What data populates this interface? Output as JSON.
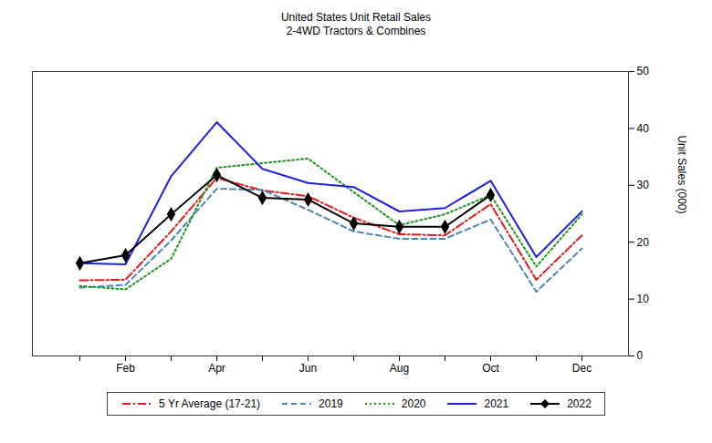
{
  "chart_data": {
    "type": "line",
    "title": "United States Unit Retail Sales",
    "subtitle": "2-4WD Tractors & Combines",
    "y_label": "Unit Sales (000)",
    "categories": [
      null,
      "Feb",
      null,
      "Apr",
      null,
      "Jun",
      null,
      "Aug",
      null,
      "Oct",
      null,
      "Dec"
    ],
    "series": [
      {
        "name": "5 Yr Average (17-21)",
        "color": "#e31a1c",
        "line_style": "dashdot",
        "values": [
          13.3,
          13.4,
          21.9,
          31.3,
          29.1,
          28.1,
          24.3,
          21.4,
          21.2,
          26.7,
          13.4,
          21.2
        ]
      },
      {
        "name": "2019",
        "color": "#4a86b8",
        "line_style": "dashed",
        "values": [
          12.0,
          12.5,
          20.3,
          29.4,
          29.2,
          25.7,
          21.9,
          20.6,
          20.6,
          24.0,
          11.3,
          18.9
        ]
      },
      {
        "name": "2020",
        "color": "#1a961a",
        "line_style": "dotted",
        "values": [
          12.3,
          11.7,
          17.1,
          33.1,
          33.9,
          34.7,
          28.8,
          23.0,
          24.9,
          28.3,
          15.7,
          24.9
        ]
      },
      {
        "name": "2021",
        "color": "#1f1fe0",
        "line_style": "solid",
        "values": [
          16.3,
          16.1,
          31.6,
          41.1,
          32.9,
          30.4,
          29.7,
          25.4,
          26.0,
          30.8,
          17.4,
          25.4
        ]
      },
      {
        "name": "2022",
        "color": "#000000",
        "line_style": "solid",
        "marker": "diamond",
        "values": [
          16.3,
          17.7,
          24.9,
          31.8,
          27.8,
          27.5,
          23.3,
          22.7,
          22.7,
          28.3,
          null,
          null
        ]
      }
    ],
    "ylim": [
      0,
      50
    ],
    "yticks": [
      0,
      10,
      20,
      30,
      40,
      50
    ],
    "grid": false,
    "legend": "bottom"
  }
}
